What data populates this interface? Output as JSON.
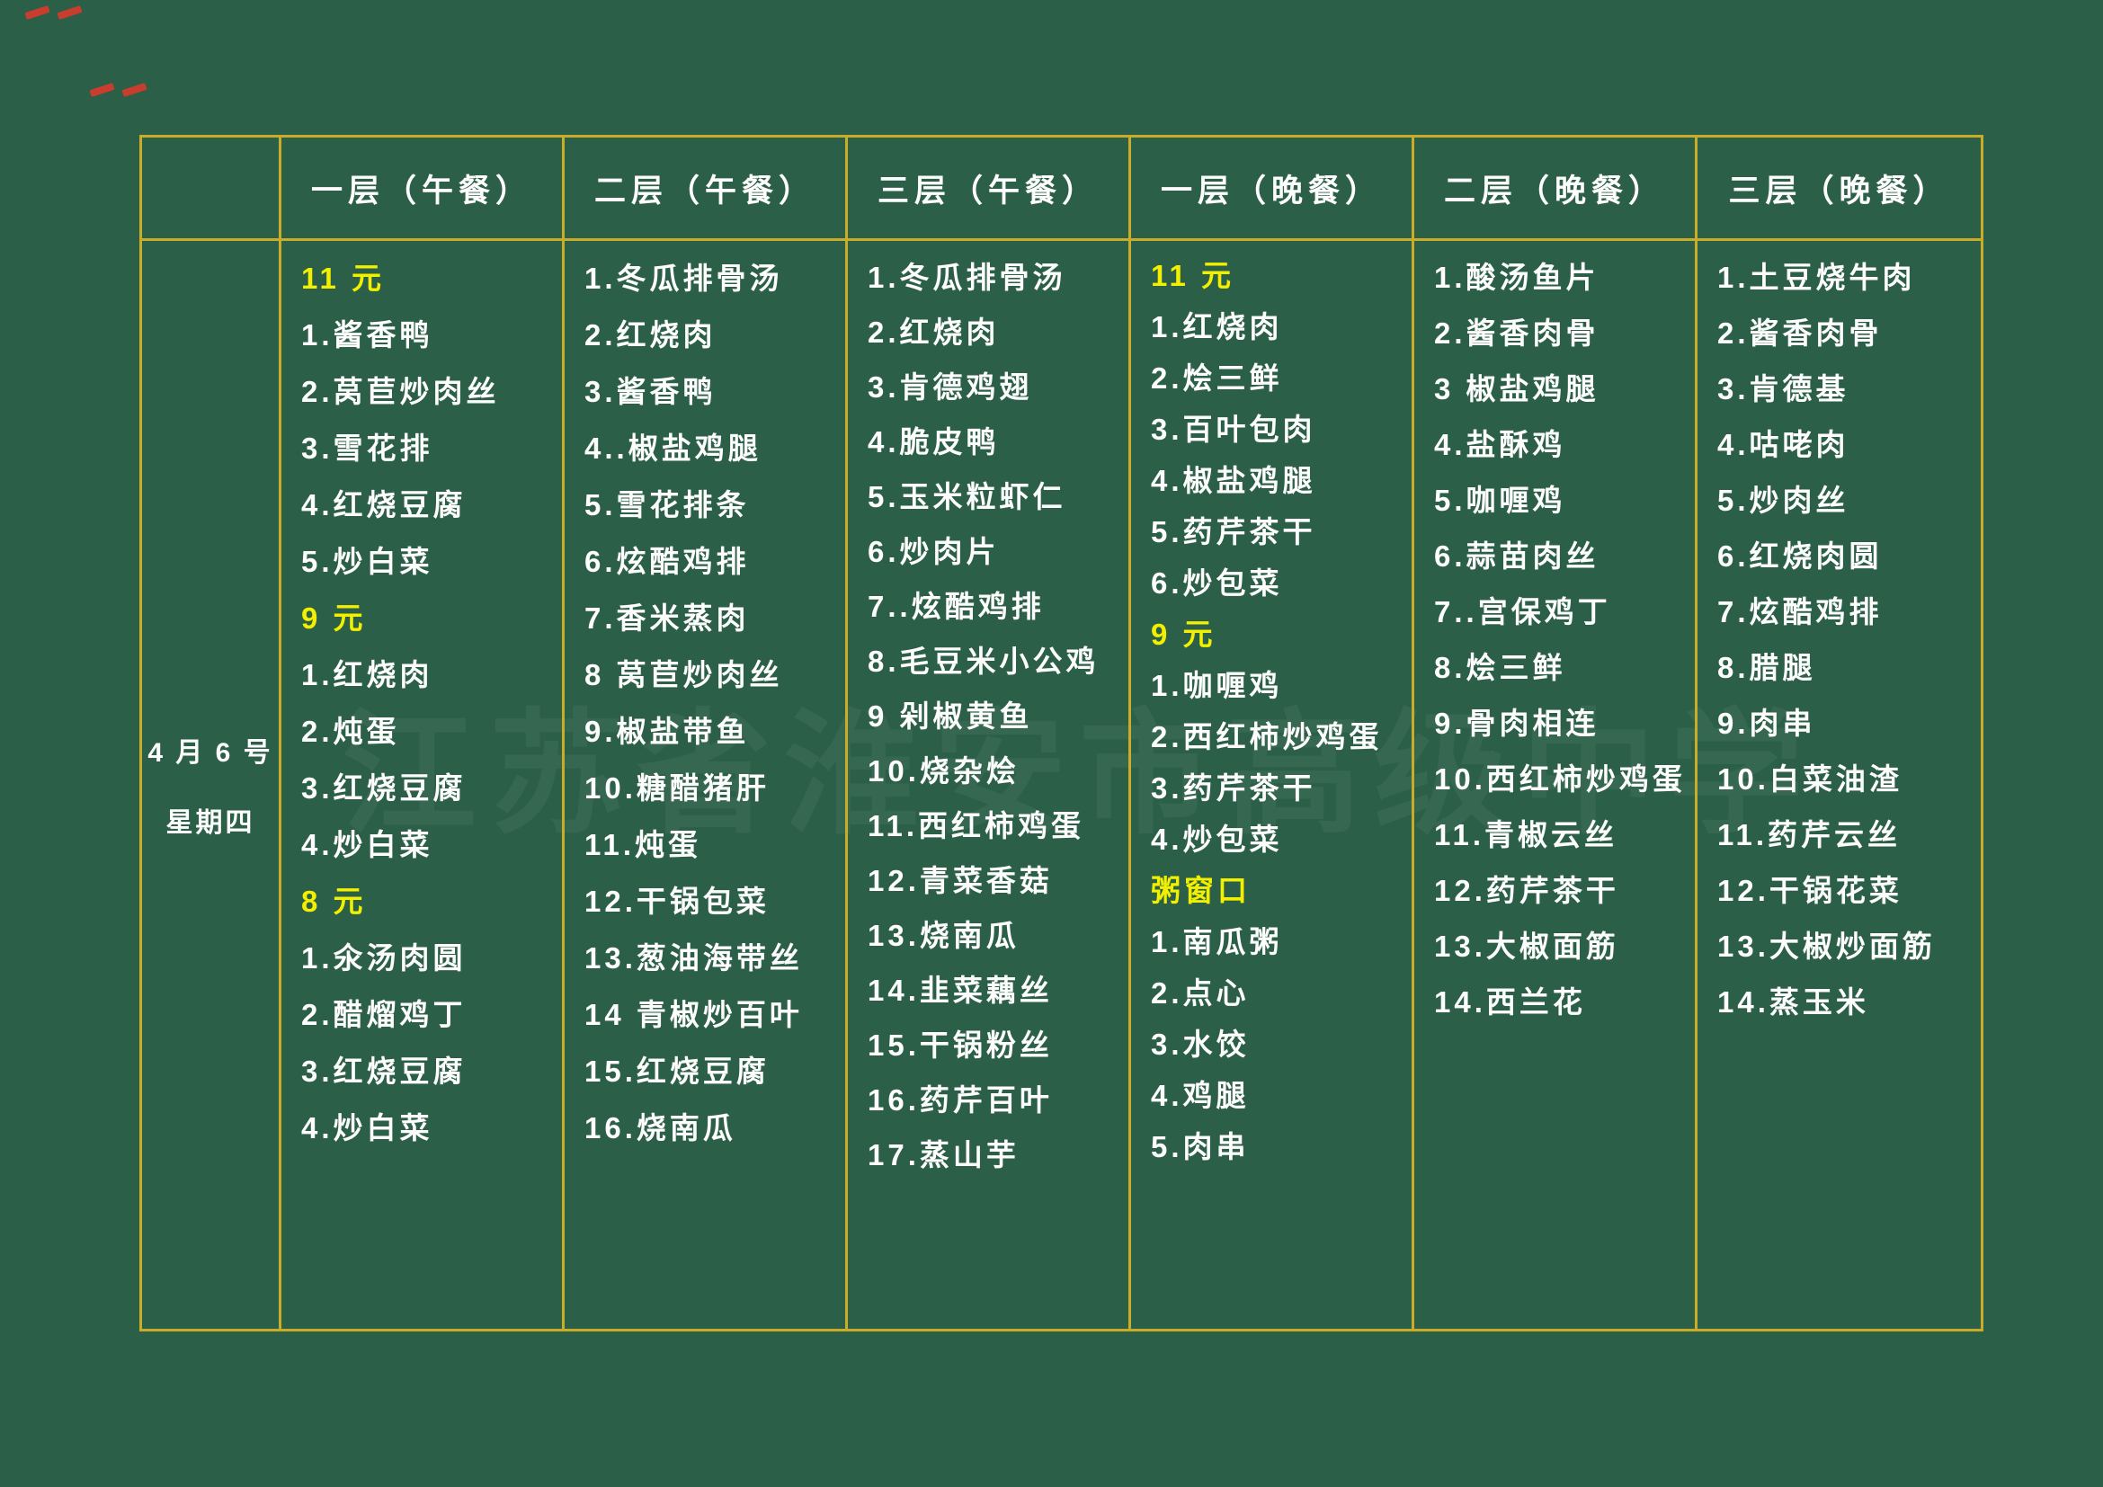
{
  "board": {
    "bg_color": "#2b5f47",
    "grid_color": "#c9ac28",
    "white_text_color": "#fdfdfd",
    "highlight_color": "#f2ef00",
    "red_mark_color": "#d93a2b",
    "watermark": "江苏省淮安市高级中学"
  },
  "date": {
    "line1": "4 月 6 号",
    "line2": "星期四"
  },
  "columns": [
    {
      "header": "一层（午餐）",
      "lh": 63,
      "items": [
        {
          "t": "11 元",
          "hl": true
        },
        {
          "t": "1.酱香鸭"
        },
        {
          "t": "2.莴苣炒肉丝"
        },
        {
          "t": "3.雪花排"
        },
        {
          "t": "4.红烧豆腐"
        },
        {
          "t": "5.炒白菜"
        },
        {
          "t": "9 元",
          "hl": true
        },
        {
          "t": "1.红烧肉"
        },
        {
          "t": "2.炖蛋"
        },
        {
          "t": "3.红烧豆腐"
        },
        {
          "t": "4.炒白菜"
        },
        {
          "t": "8 元",
          "hl": true
        },
        {
          "t": "1.氽汤肉圆"
        },
        {
          "t": "2.醋熘鸡丁"
        },
        {
          "t": "3.红烧豆腐"
        },
        {
          "t": "4.炒白菜"
        }
      ]
    },
    {
      "header": "二层（午餐）",
      "lh": 63,
      "items": [
        {
          "t": "1.冬瓜排骨汤"
        },
        {
          "t": "2.红烧肉"
        },
        {
          "t": "3.酱香鸭"
        },
        {
          "t": "4..椒盐鸡腿"
        },
        {
          "t": "5.雪花排条"
        },
        {
          "t": "6.炫酷鸡排"
        },
        {
          "t": "7.香米蒸肉"
        },
        {
          "t": "8 莴苣炒肉丝"
        },
        {
          "t": "9.椒盐带鱼"
        },
        {
          "t": "10.糖醋猪肝"
        },
        {
          "t": "11.炖蛋"
        },
        {
          "t": "12.干锅包菜"
        },
        {
          "t": "13.葱油海带丝"
        },
        {
          "t": "14 青椒炒百叶"
        },
        {
          "t": "15.红烧豆腐"
        },
        {
          "t": "16.烧南瓜"
        }
      ]
    },
    {
      "header": "三层（午餐）",
      "lh": 61,
      "items": [
        {
          "t": "1.冬瓜排骨汤"
        },
        {
          "t": "2.红烧肉"
        },
        {
          "t": "3.肯德鸡翅"
        },
        {
          "t": "4.脆皮鸭"
        },
        {
          "t": "5.玉米粒虾仁"
        },
        {
          "t": "6.炒肉片"
        },
        {
          "t": "7..炫酷鸡排"
        },
        {
          "t": "8.毛豆米小公鸡"
        },
        {
          "t": "9 剁椒黄鱼"
        },
        {
          "t": "10.烧杂烩"
        },
        {
          "t": "11.西红柿鸡蛋"
        },
        {
          "t": "12.青菜香菇"
        },
        {
          "t": "13.烧南瓜"
        },
        {
          "t": "14.韭菜藕丝"
        },
        {
          "t": "15.干锅粉丝"
        },
        {
          "t": "16.药芹百叶"
        },
        {
          "t": "17.蒸山芋"
        }
      ]
    },
    {
      "header": "一层（晚餐）",
      "lh": 57,
      "items": [
        {
          "t": "11 元",
          "hl": true
        },
        {
          "t": "1.红烧肉"
        },
        {
          "t": "2.烩三鲜"
        },
        {
          "t": "3.百叶包肉"
        },
        {
          "t": "4.椒盐鸡腿"
        },
        {
          "t": "5.药芹茶干"
        },
        {
          "t": "6.炒包菜"
        },
        {
          "t": "9 元",
          "hl": true
        },
        {
          "t": "1.咖喱鸡"
        },
        {
          "t": "2.西红柿炒鸡蛋"
        },
        {
          "t": "3.药芹茶干"
        },
        {
          "t": "4.炒包菜"
        },
        {
          "t": "粥窗口",
          "hl": true
        },
        {
          "t": "1.南瓜粥"
        },
        {
          "t": "2.点心"
        },
        {
          "t": "3.水饺"
        },
        {
          "t": "4.鸡腿"
        },
        {
          "t": "5.肉串"
        }
      ]
    },
    {
      "header": "二层（晚餐）",
      "lh": 62,
      "items": [
        {
          "t": "1.酸汤鱼片"
        },
        {
          "t": "2.酱香肉骨"
        },
        {
          "t": "3 椒盐鸡腿"
        },
        {
          "t": "4.盐酥鸡"
        },
        {
          "t": "5.咖喱鸡"
        },
        {
          "t": "6.蒜苗肉丝"
        },
        {
          "t": "7..宫保鸡丁"
        },
        {
          "t": "8.烩三鲜"
        },
        {
          "t": "9.骨肉相连"
        },
        {
          "t": "10.西红柿炒鸡蛋"
        },
        {
          "t": "11.青椒云丝"
        },
        {
          "t": "12.药芹茶干"
        },
        {
          "t": "13.大椒面筋"
        },
        {
          "t": "14.西兰花"
        }
      ]
    },
    {
      "header": "三层（晚餐）",
      "lh": 62,
      "items": [
        {
          "t": "1.土豆烧牛肉"
        },
        {
          "t": "2.酱香肉骨"
        },
        {
          "t": "3.肯德基"
        },
        {
          "t": "4.咕咾肉"
        },
        {
          "t": "5.炒肉丝"
        },
        {
          "t": "6.红烧肉圆"
        },
        {
          "t": "7.炫酷鸡排"
        },
        {
          "t": "8.腊腿"
        },
        {
          "t": "9.肉串"
        },
        {
          "t": "10.白菜油渣"
        },
        {
          "t": "11.药芹云丝"
        },
        {
          "t": "12.干锅花菜"
        },
        {
          "t": "13.大椒炒面筋"
        },
        {
          "t": "14.蒸玉米"
        }
      ]
    }
  ]
}
